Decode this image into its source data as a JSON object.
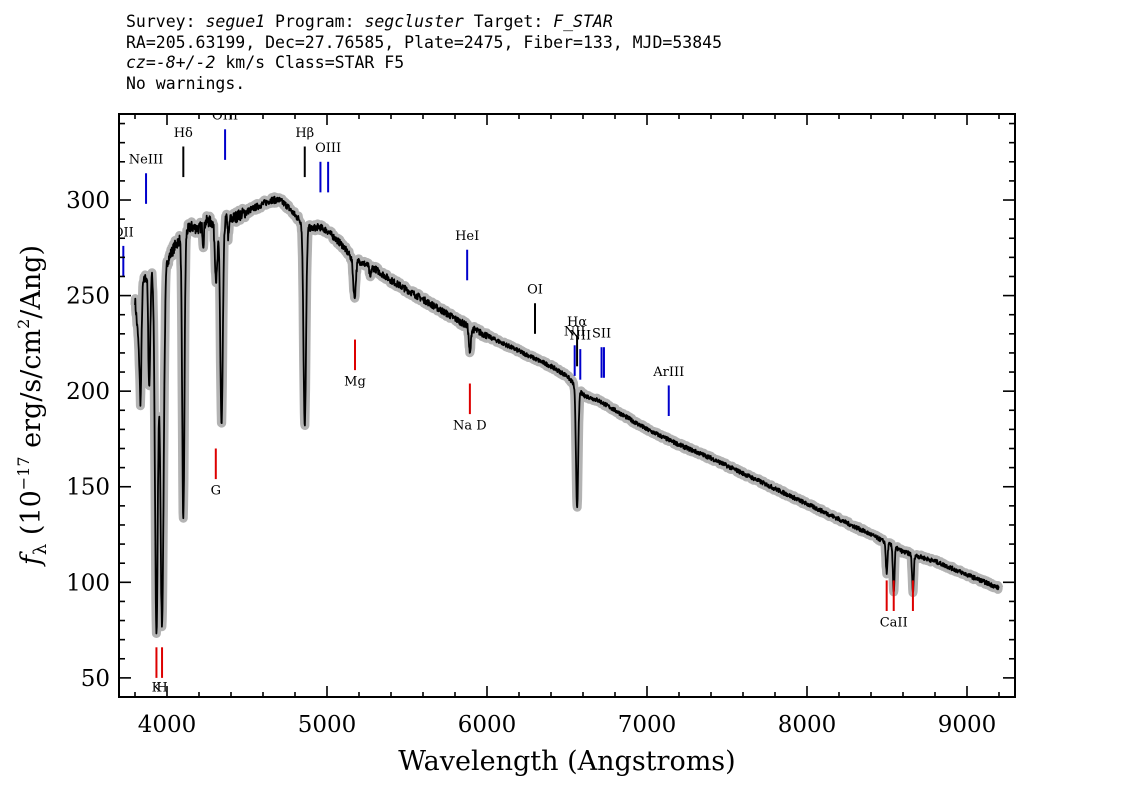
{
  "header": {
    "line1": {
      "survey_label": "Survey: ",
      "survey_value": "segue1",
      "program_label": " Program: ",
      "program_value": "segcluster",
      "target_label": " Target: ",
      "target_value": "F_STAR"
    },
    "line2": "RA=205.63199, Dec=27.76585, Plate=2475, Fiber=133, MJD=53845",
    "line3": {
      "cz_label": "cz=",
      "cz_value": "-8+/-2",
      "cz_rest": " km/s Class=STAR F5"
    },
    "line4": "No warnings."
  },
  "chart_data": {
    "type": "line",
    "xlabel": "Wavelength (Angstroms)",
    "ylabel_parts": {
      "f": "f",
      "sub": "λ",
      "open": " (10",
      "exp": "−17",
      "unit": " erg/s/cm",
      "exp2": "2",
      "close": "/Ang)"
    },
    "xlim": [
      3700,
      9300
    ],
    "ylim": [
      40,
      345
    ],
    "xticks": [
      4000,
      5000,
      6000,
      7000,
      8000,
      9000
    ],
    "yticks": [
      50,
      100,
      150,
      200,
      250,
      300
    ],
    "x_minor_step": 200,
    "y_minor_step": 10,
    "grid": false,
    "colors": {
      "spectrum": "#000000",
      "error_band": "#b3b3b3",
      "emission_lines": "#0000cc",
      "absorption_lines": "#dd0000",
      "marker_lines": "#000000"
    },
    "continuum": [
      [
        3800,
        248
      ],
      [
        3825,
        222
      ],
      [
        3850,
        256
      ],
      [
        3880,
        262
      ],
      [
        3920,
        262
      ],
      [
        3960,
        250
      ],
      [
        4000,
        268
      ],
      [
        4050,
        276
      ],
      [
        4100,
        282
      ],
      [
        4150,
        286
      ],
      [
        4200,
        285
      ],
      [
        4250,
        289
      ],
      [
        4300,
        288
      ],
      [
        4350,
        290
      ],
      [
        4400,
        290
      ],
      [
        4450,
        292
      ],
      [
        4500,
        294
      ],
      [
        4550,
        296
      ],
      [
        4600,
        298
      ],
      [
        4650,
        300
      ],
      [
        4700,
        300
      ],
      [
        4750,
        297
      ],
      [
        4800,
        292
      ],
      [
        4850,
        288
      ],
      [
        4900,
        285
      ],
      [
        4950,
        286
      ],
      [
        5000,
        284
      ],
      [
        5050,
        280
      ],
      [
        5100,
        276
      ],
      [
        5150,
        270
      ],
      [
        5200,
        268
      ],
      [
        5250,
        266
      ],
      [
        5300,
        264
      ],
      [
        5400,
        258
      ],
      [
        5500,
        253
      ],
      [
        5600,
        248
      ],
      [
        5700,
        243
      ],
      [
        5800,
        238
      ],
      [
        5900,
        233
      ],
      [
        6000,
        229
      ],
      [
        6100,
        225
      ],
      [
        6200,
        221
      ],
      [
        6300,
        217
      ],
      [
        6400,
        213
      ],
      [
        6500,
        208
      ],
      [
        6600,
        198
      ],
      [
        6700,
        195
      ],
      [
        6800,
        190
      ],
      [
        6900,
        185
      ],
      [
        7000,
        180
      ],
      [
        7200,
        172
      ],
      [
        7400,
        165
      ],
      [
        7600,
        157
      ],
      [
        7800,
        149
      ],
      [
        8000,
        141
      ],
      [
        8200,
        133
      ],
      [
        8400,
        125
      ],
      [
        8600,
        116
      ],
      [
        8800,
        111
      ],
      [
        9000,
        104
      ],
      [
        9200,
        97
      ]
    ],
    "absorption_features": [
      {
        "wavelength": 3835,
        "depth": 40,
        "width": 5
      },
      {
        "wavelength": 3889,
        "depth": 60,
        "width": 6
      },
      {
        "wavelength": 3934,
        "depth": 185,
        "width": 9
      },
      {
        "wavelength": 3969,
        "depth": 175,
        "width": 10
      },
      {
        "wavelength": 4102,
        "depth": 150,
        "width": 7
      },
      {
        "wavelength": 4227,
        "depth": 10,
        "width": 4
      },
      {
        "wavelength": 4308,
        "depth": 30,
        "width": 8
      },
      {
        "wavelength": 4341,
        "depth": 108,
        "width": 8
      },
      {
        "wavelength": 4384,
        "depth": 10,
        "width": 4
      },
      {
        "wavelength": 4861,
        "depth": 105,
        "width": 8
      },
      {
        "wavelength": 5172,
        "depth": 20,
        "width": 8
      },
      {
        "wavelength": 5270,
        "depth": 6,
        "width": 5
      },
      {
        "wavelength": 5893,
        "depth": 14,
        "width": 6
      },
      {
        "wavelength": 6563,
        "depth": 62,
        "width": 7
      },
      {
        "wavelength": 8498,
        "depth": 16,
        "width": 5
      },
      {
        "wavelength": 8542,
        "depth": 24,
        "width": 5
      },
      {
        "wavelength": 8662,
        "depth": 20,
        "width": 5
      }
    ],
    "line_markers": [
      {
        "label": "OII",
        "wavelength": 3727,
        "color": "#0000cc",
        "y_bottom": 260,
        "y_top": 276,
        "label_y": 281
      },
      {
        "label": "NeIII",
        "wavelength": 3869,
        "color": "#0000cc",
        "y_bottom": 298,
        "y_top": 314,
        "label_y": 319
      },
      {
        "label": "Hδ",
        "wavelength": 4102,
        "color": "#000000",
        "y_bottom": 312,
        "y_top": 328,
        "label_y": 333
      },
      {
        "label": "OIII",
        "wavelength": 4363,
        "color": "#0000cc",
        "y_bottom": 321,
        "y_top": 337,
        "label_y": 342
      },
      {
        "label": "Hβ",
        "wavelength": 4861,
        "color": "#000000",
        "y_bottom": 312,
        "y_top": 328,
        "label_y": 333
      },
      {
        "label": "OIII",
        "wavelength": 4959,
        "color": "#0000cc",
        "y_bottom": 304,
        "y_top": 320,
        "label_y": 0
      },
      {
        "label": "OIII",
        "wavelength": 5007,
        "color": "#0000cc",
        "y_bottom": 304,
        "y_top": 320,
        "label_y": 325
      },
      {
        "label": "HeI",
        "wavelength": 5876,
        "color": "#0000cc",
        "y_bottom": 258,
        "y_top": 274,
        "label_y": 279
      },
      {
        "label": "OI",
        "wavelength": 6300,
        "color": "#000000",
        "y_bottom": 230,
        "y_top": 246,
        "label_y": 251
      },
      {
        "label": "NII",
        "wavelength": 6548,
        "color": "#0000cc",
        "y_bottom": 208,
        "y_top": 224,
        "label_y": 229
      },
      {
        "label": "Hα",
        "wavelength": 6563,
        "color": "#000000",
        "y_bottom": 213,
        "y_top": 229,
        "label_y": 234
      },
      {
        "label": "NII",
        "wavelength": 6583,
        "color": "#0000cc",
        "y_bottom": 206,
        "y_top": 222,
        "label_y": 227
      },
      {
        "label": "SII",
        "wavelength": 6716,
        "color": "#0000cc",
        "y_bottom": 207,
        "y_top": 223,
        "label_y": 228
      },
      {
        "label": "SII",
        "wavelength": 6731,
        "color": "#0000cc",
        "y_bottom": 207,
        "y_top": 223,
        "label_y": 0
      },
      {
        "label": "ArIII",
        "wavelength": 7136,
        "color": "#0000cc",
        "y_bottom": 187,
        "y_top": 203,
        "label_y": 208
      },
      {
        "label": "K",
        "wavelength": 3934,
        "color": "#dd0000",
        "y_bottom": 50,
        "y_top": 66,
        "label_y": 43
      },
      {
        "label": "H",
        "wavelength": 3969,
        "color": "#dd0000",
        "y_bottom": 50,
        "y_top": 66,
        "label_y": 43
      },
      {
        "label": "G",
        "wavelength": 4305,
        "color": "#dd0000",
        "y_bottom": 154,
        "y_top": 170,
        "label_y": 146
      },
      {
        "label": "Mg",
        "wavelength": 5175,
        "color": "#dd0000",
        "y_bottom": 211,
        "y_top": 227,
        "label_y": 203
      },
      {
        "label": "Na D",
        "wavelength": 5893,
        "color": "#dd0000",
        "y_bottom": 188,
        "y_top": 204,
        "label_y": 180
      },
      {
        "label": "CaII",
        "wavelength": 8498,
        "color": "#dd0000",
        "y_bottom": 85,
        "y_top": 101,
        "label_y": 0
      },
      {
        "label": "CaII",
        "wavelength": 8542,
        "color": "#dd0000",
        "y_bottom": 85,
        "y_top": 101,
        "label_y": 77
      },
      {
        "label": "CaII",
        "wavelength": 8662,
        "color": "#dd0000",
        "y_bottom": 85,
        "y_top": 101,
        "label_y": 0
      }
    ]
  }
}
